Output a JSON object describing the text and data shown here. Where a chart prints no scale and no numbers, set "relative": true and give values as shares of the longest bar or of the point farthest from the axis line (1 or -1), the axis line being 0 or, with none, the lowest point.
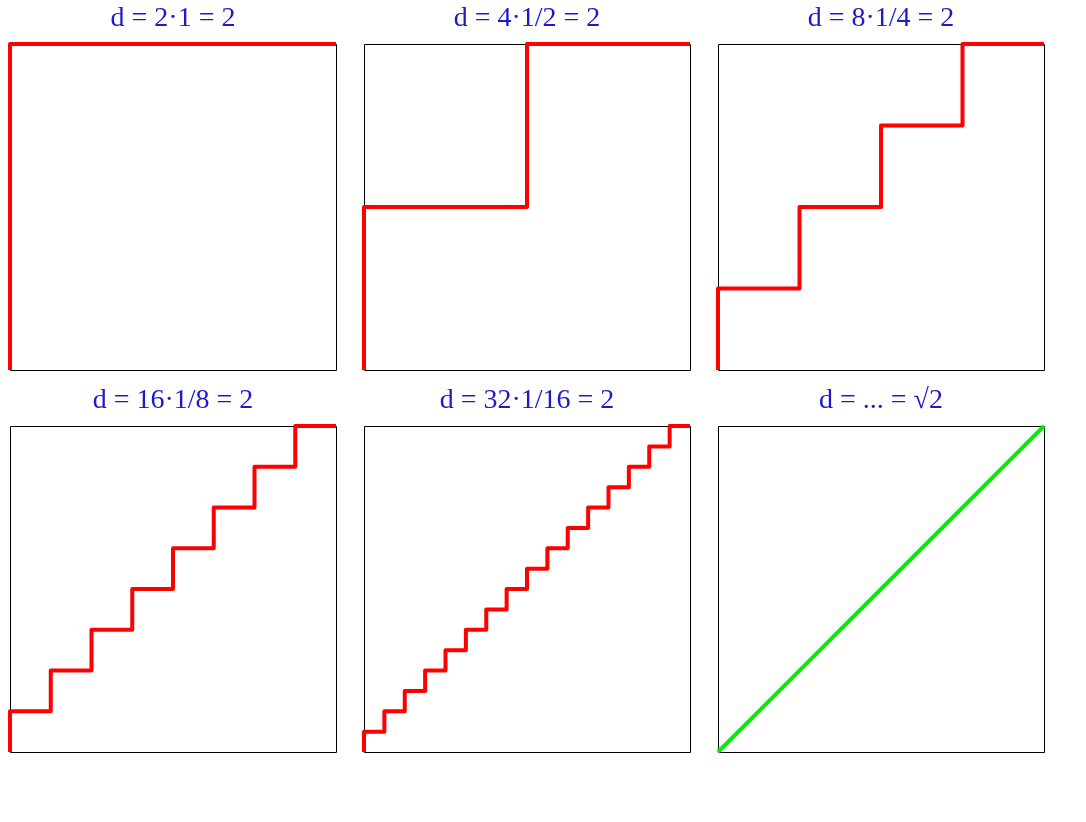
{
  "chart_data": [
    {
      "type": "step",
      "title": "d = 2·1 = 2",
      "relative": true,
      "categories": [
        null,
        null
      ],
      "series": [
        {
          "color": "#ff0000",
          "values": [
            0,
            1
          ]
        }
      ]
    },
    {
      "type": "step",
      "title": "d = 4·1/2 = 2",
      "relative": true,
      "categories": [
        null,
        null,
        null
      ],
      "series": [
        {
          "color": "#ff0000",
          "values": [
            0,
            0.5,
            1
          ]
        }
      ]
    },
    {
      "type": "step",
      "title": "d = 8·1/4 = 2",
      "relative": true,
      "categories": [
        null,
        null,
        null,
        null,
        null
      ],
      "series": [
        {
          "color": "#ff0000",
          "values": [
            0,
            0.25,
            0.5,
            0.75,
            1
          ]
        }
      ]
    },
    {
      "type": "step",
      "title": "d = 16·1/8 = 2",
      "relative": true,
      "categories": [
        null,
        null,
        null,
        null,
        null,
        null,
        null,
        null,
        null
      ],
      "series": [
        {
          "color": "#ff0000",
          "values": [
            0,
            0.125,
            0.25,
            0.375,
            0.5,
            0.625,
            0.75,
            0.875,
            1
          ]
        }
      ]
    },
    {
      "type": "step",
      "title": "d = 32·1/16 = 2",
      "relative": true,
      "categories": [
        null,
        null,
        null,
        null,
        null,
        null,
        null,
        null,
        null,
        null,
        null,
        null,
        null,
        null,
        null,
        null,
        null
      ],
      "series": [
        {
          "color": "#ff0000",
          "values": [
            0,
            0.0625,
            0.125,
            0.1875,
            0.25,
            0.3125,
            0.375,
            0.4375,
            0.5,
            0.5625,
            0.625,
            0.6875,
            0.75,
            0.8125,
            0.875,
            0.9375,
            1
          ]
        }
      ]
    },
    {
      "type": "line",
      "title": "d = ... = √2",
      "relative": true,
      "categories": [
        null,
        null
      ],
      "series": [
        {
          "color": "#00ee00",
          "values": [
            0,
            1
          ]
        }
      ]
    }
  ]
}
